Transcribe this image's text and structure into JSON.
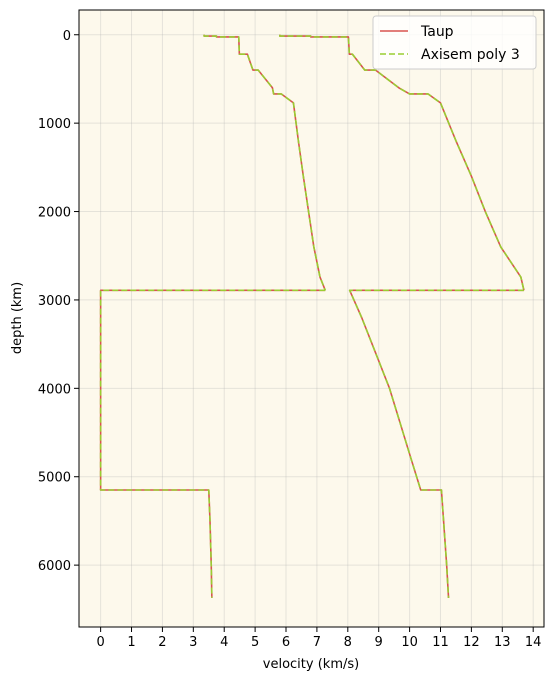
{
  "chart_data": {
    "type": "line",
    "xlabel": "velocity (km/s)",
    "ylabel": "depth (km)",
    "xlim": [
      -0.7,
      14.35
    ],
    "ylim": [
      6700,
      -280
    ],
    "y_inverted": true,
    "xticks": [
      0,
      1,
      2,
      3,
      4,
      5,
      6,
      7,
      8,
      9,
      10,
      11,
      12,
      13,
      14
    ],
    "yticks": [
      0,
      1000,
      2000,
      3000,
      4000,
      5000,
      6000
    ],
    "grid": true,
    "background_color": "#fdf9ec",
    "legend_position": "top-right",
    "series": [
      {
        "name": "Taup",
        "color": "#d9534f",
        "linestyle": "solid",
        "curves": [
          {
            "label": "vs",
            "points": [
              [
                3.35,
                0
              ],
              [
                3.35,
                15
              ],
              [
                3.75,
                15
              ],
              [
                3.75,
                24.4
              ],
              [
                4.47,
                24.4
              ],
              [
                4.49,
                220
              ],
              [
                4.75,
                220
              ],
              [
                4.93,
                400
              ],
              [
                5.1,
                400
              ],
              [
                5.56,
                600
              ],
              [
                5.6,
                670
              ],
              [
                5.85,
                670
              ],
              [
                6.24,
                771
              ],
              [
                6.4,
                1200
              ],
              [
                6.56,
                1600
              ],
              [
                6.73,
                2000
              ],
              [
                6.9,
                2400
              ],
              [
                7.1,
                2741
              ],
              [
                7.27,
                2891
              ]
            ]
          },
          {
            "label": "vs-outer-core",
            "points": [
              [
                7.27,
                2891
              ],
              [
                0,
                2891
              ],
              [
                0,
                5150
              ],
              [
                3.5,
                5150
              ],
              [
                3.54,
                5500
              ],
              [
                3.58,
                6000
              ],
              [
                3.6,
                6371
              ]
            ]
          },
          {
            "label": "vp",
            "points": [
              [
                5.8,
                0
              ],
              [
                5.8,
                15
              ],
              [
                6.8,
                15
              ],
              [
                6.8,
                24.4
              ],
              [
                8.02,
                24.4
              ],
              [
                8.05,
                220
              ],
              [
                8.15,
                220
              ],
              [
                8.55,
                400
              ],
              [
                8.9,
                400
              ],
              [
                9.65,
                600
              ],
              [
                10.0,
                670
              ],
              [
                10.6,
                670
              ],
              [
                11.0,
                771
              ],
              [
                11.5,
                1200
              ],
              [
                12.0,
                1600
              ],
              [
                12.45,
                2000
              ],
              [
                12.95,
                2400
              ],
              [
                13.6,
                2741
              ],
              [
                13.7,
                2891
              ]
            ]
          },
          {
            "label": "vp-outer-core",
            "points": [
              [
                13.7,
                2891
              ],
              [
                8.06,
                2891
              ],
              [
                8.45,
                3200
              ],
              [
                8.9,
                3600
              ],
              [
                9.35,
                4000
              ],
              [
                9.7,
                4400
              ],
              [
                10.05,
                4800
              ],
              [
                10.36,
                5150
              ],
              [
                11.03,
                5150
              ],
              [
                11.1,
                5500
              ],
              [
                11.2,
                6000
              ],
              [
                11.26,
                6371
              ]
            ]
          }
        ]
      },
      {
        "name": "Axisem poly 3",
        "color": "#9acd32",
        "linestyle": "dashed",
        "same_as": "Taup"
      }
    ]
  }
}
